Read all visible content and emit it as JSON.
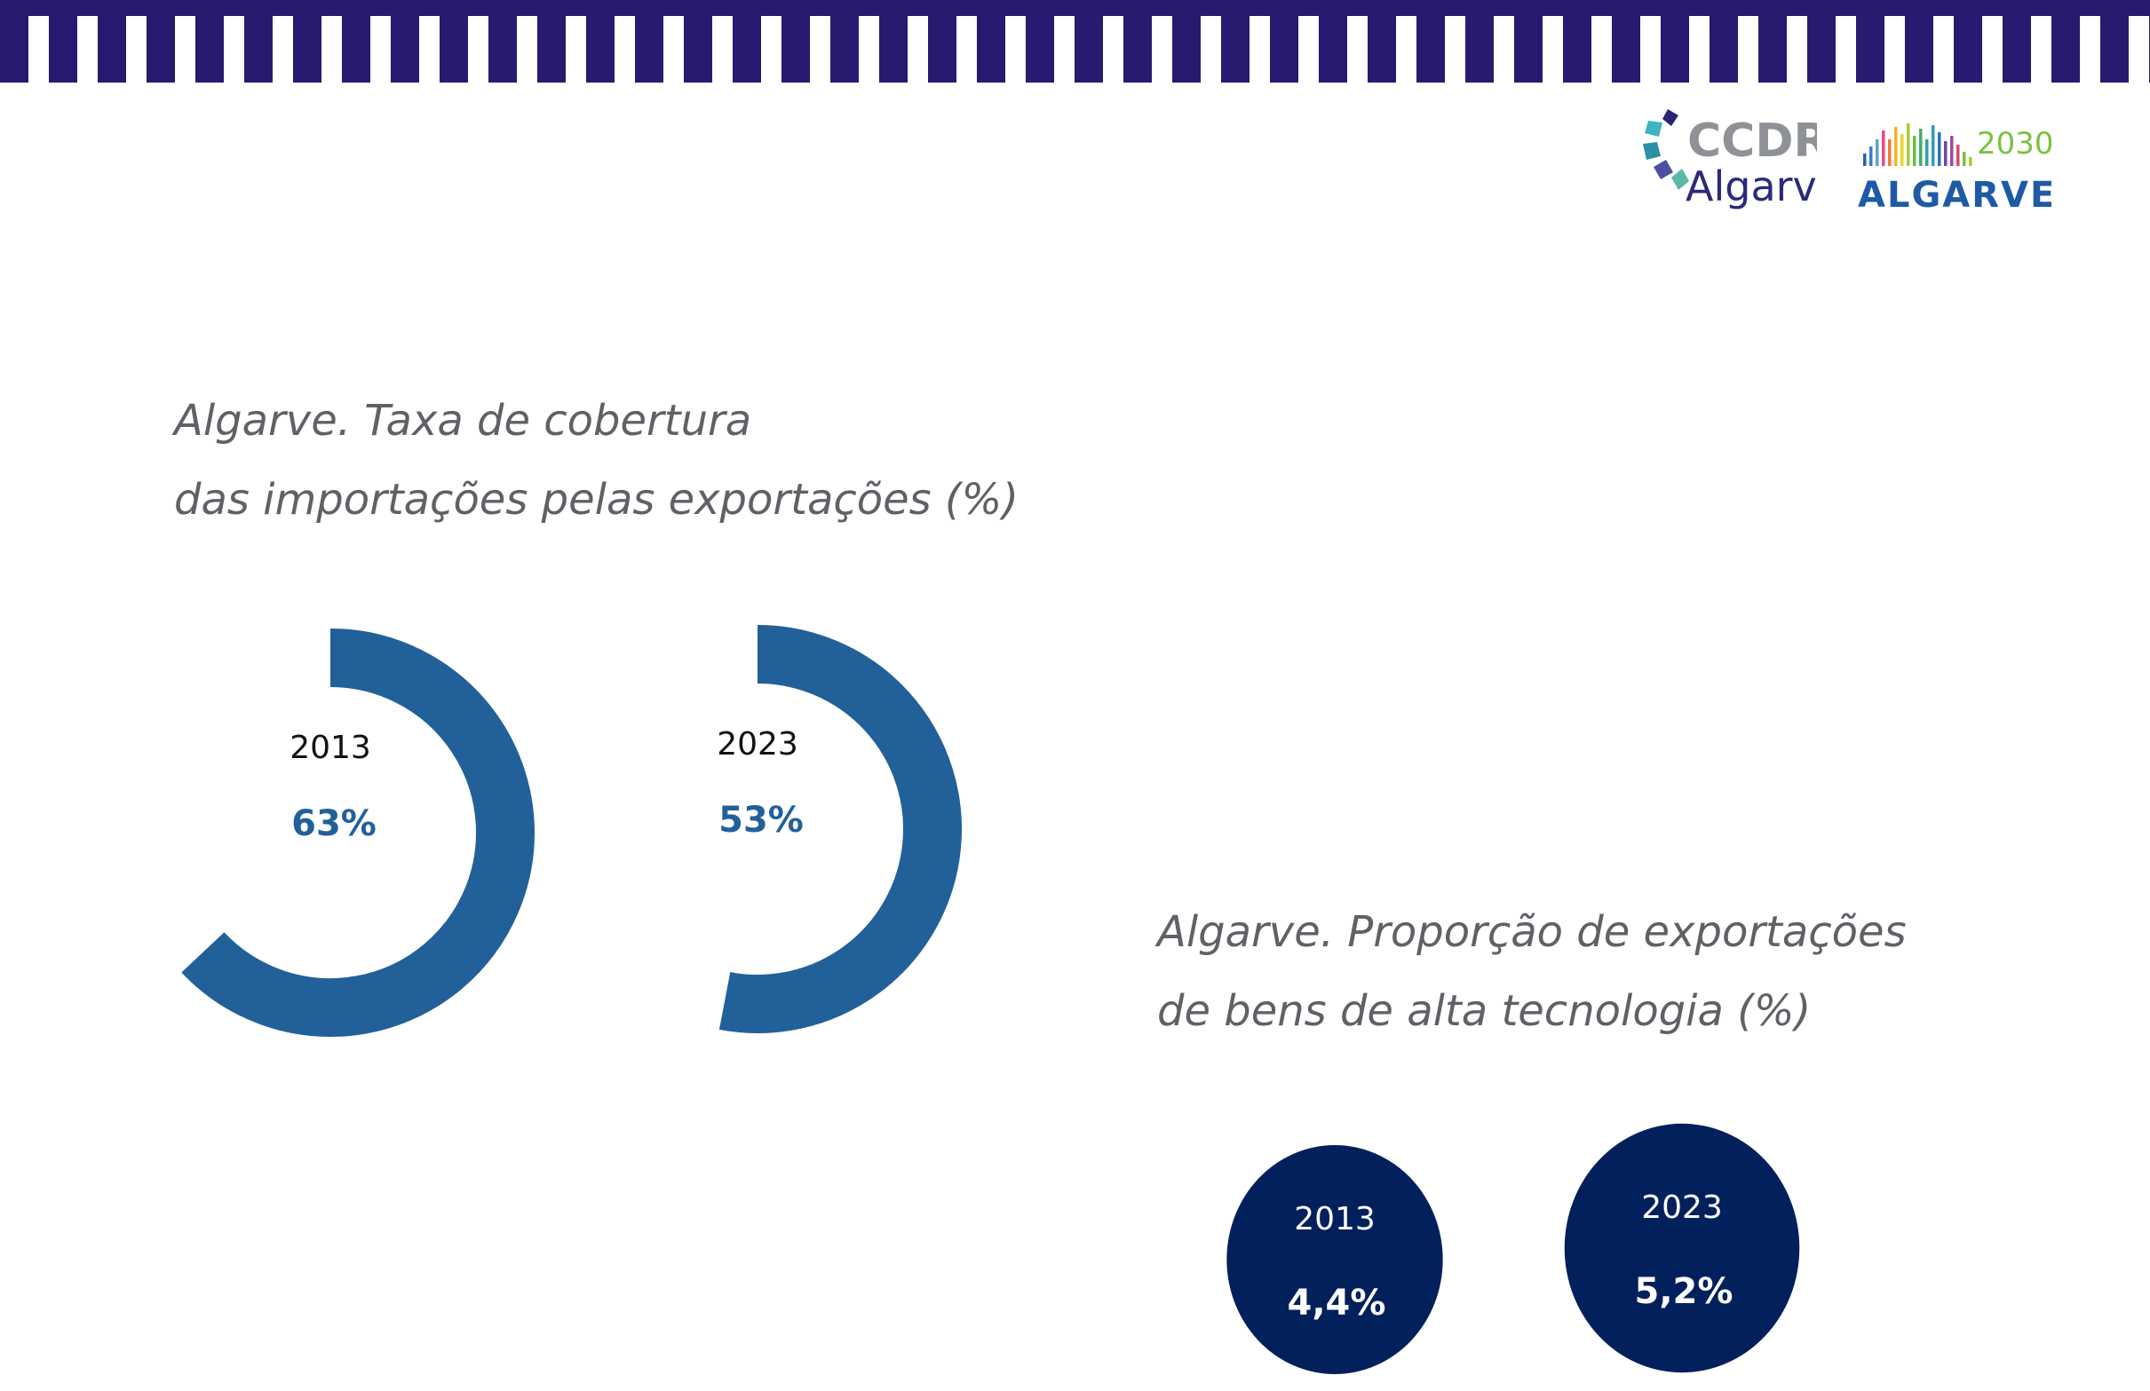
{
  "colors": {
    "band": "#271a70",
    "donut": "#22609a",
    "bubble": "#02205b",
    "title": "#5f6166"
  },
  "logos": {
    "ccdr_line1": "CCDR",
    "ccdr_line2": "Algarve",
    "algarve2030_year": "2030",
    "algarve2030_name": "ALGARVE"
  },
  "chart_data": [
    {
      "type": "donut",
      "title_lines": [
        "Algarve. Taxa de cobertura",
        "das importações pelas exportações (%)"
      ],
      "unit": "%",
      "items": [
        {
          "year": "2013",
          "value": 63,
          "label": "63%"
        },
        {
          "year": "2023",
          "value": 53,
          "label": "53%"
        }
      ]
    },
    {
      "type": "bubble",
      "title_lines": [
        "Algarve. Proporção de exportações",
        "de bens de alta tecnologia (%)"
      ],
      "unit": "%",
      "items": [
        {
          "year": "2013",
          "value": 4.4,
          "label": "4,4%"
        },
        {
          "year": "2023",
          "value": 5.2,
          "label": "5,2%"
        }
      ]
    }
  ]
}
